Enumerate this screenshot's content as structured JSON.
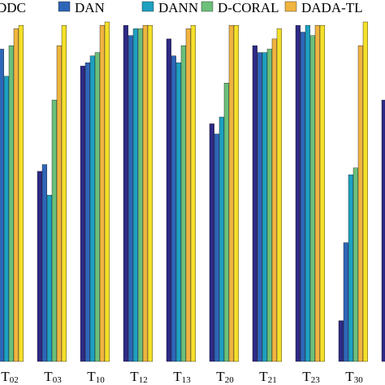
{
  "chart_data": {
    "type": "bar",
    "title": "",
    "xlabel": "",
    "ylabel": "",
    "ylim": [
      0,
      100
    ],
    "grid": false,
    "legend_placement": "top",
    "categories": [
      {
        "base": "T",
        "sub": "02"
      },
      {
        "base": "T",
        "sub": "03"
      },
      {
        "base": "T",
        "sub": "10"
      },
      {
        "base": "T",
        "sub": "12"
      },
      {
        "base": "T",
        "sub": "13"
      },
      {
        "base": "T",
        "sub": "20"
      },
      {
        "base": "T",
        "sub": "21"
      },
      {
        "base": "T",
        "sub": "23"
      },
      {
        "base": "T",
        "sub": "30"
      },
      {
        "base": "",
        "sub": ""
      }
    ],
    "series": [
      {
        "name": "DDC",
        "color": "#2e2a85",
        "values": [
          97,
          56,
          87,
          99,
          95,
          70,
          93,
          99,
          12,
          77
        ]
      },
      {
        "name": "DAN",
        "color": "#2e66b8",
        "values": [
          92,
          58,
          88,
          96,
          90,
          67,
          91,
          97,
          35,
          null
        ]
      },
      {
        "name": "DANN",
        "color": "#1ea0c0",
        "values": [
          84,
          49,
          90,
          98,
          88,
          72,
          91,
          99,
          55,
          null
        ]
      },
      {
        "name": "D-CORAL",
        "color": "#6cc07a",
        "values": [
          93,
          77,
          91,
          98,
          93,
          82,
          92,
          96,
          57,
          null
        ]
      },
      {
        "name": "DADA-TL",
        "color": "#f0b440",
        "values": [
          98,
          93,
          99,
          99,
          98,
          99,
          95,
          99,
          93,
          null
        ]
      },
      {
        "name": "",
        "color": "#f5e02a",
        "values": [
          99,
          99,
          100,
          99,
          99,
          99,
          98,
          99,
          100,
          null
        ]
      }
    ]
  }
}
